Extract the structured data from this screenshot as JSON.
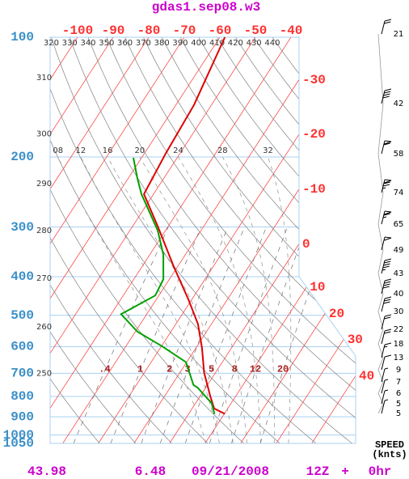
{
  "chart_data": {
    "type": "skewt",
    "title": "gdas1.sep08.w3",
    "yscale": "log",
    "ylim": [
      100,
      1050
    ],
    "yticks": [
      100,
      200,
      300,
      400,
      500,
      600,
      700,
      800,
      900,
      1000,
      1050
    ],
    "isobar_color": "#a8d0f0",
    "pressure_label_color": "#3a8fc8",
    "isotherms": [
      -100,
      -90,
      -80,
      -70,
      -60,
      -50,
      -40,
      -30,
      -20,
      -10,
      0,
      10,
      20,
      30,
      40
    ],
    "isotherm_color": "#ff3030",
    "dry_adiabats": [
      250,
      260,
      270,
      280,
      290,
      300,
      310,
      320,
      330,
      340,
      350,
      360,
      370,
      380,
      390,
      400,
      410,
      420,
      430,
      440
    ],
    "dry_adiabat_color": "#808080",
    "moist_adiabats": [
      {
        "value": 8,
        "label": "08"
      },
      12,
      16,
      20,
      24,
      28,
      32
    ],
    "mixing_ratios": [
      {
        "value": 0.4,
        "label": ".4"
      },
      1,
      2,
      3,
      5,
      8,
      12,
      20
    ],
    "mixing_ratio_label_color": "#aa2020",
    "temperature": {
      "color": "#dd0000",
      "pressure": [
        100,
        148,
        196,
        248,
        299,
        378,
        456,
        526,
        604,
        697,
        800,
        858,
        885
      ],
      "values": [
        -58.6,
        -54.9,
        -54.0,
        -52.7,
        -42.9,
        -31.0,
        -21.0,
        -13.8,
        -8.3,
        -3.2,
        2.9,
        6.2,
        10.2
      ]
    },
    "dewpoint": {
      "color": "#00a000",
      "pressure": [
        201,
        226,
        248,
        306,
        352,
        406,
        446,
        497,
        550,
        598,
        656,
        749,
        760,
        832,
        886
      ],
      "values": [
        -62.3,
        -57.5,
        -53.4,
        -42.2,
        -36.2,
        -31.7,
        -31.0,
        -37.2,
        -29.4,
        -19.9,
        -10.2,
        -3.9,
        -2.3,
        4.5,
        7.3
      ]
    },
    "wind_speed_label": "SPEED",
    "wind_speed_unit": "(knts)",
    "wind_speeds": [
      21,
      42,
      58,
      74,
      65,
      49,
      43,
      40,
      30,
      22,
      18,
      13,
      9,
      7,
      6,
      5,
      5
    ],
    "footer": [
      43.98,
      6.48,
      "09/21/2008",
      "12Z",
      "+",
      "0hr"
    ],
    "footer_color": "#cc00cc"
  }
}
